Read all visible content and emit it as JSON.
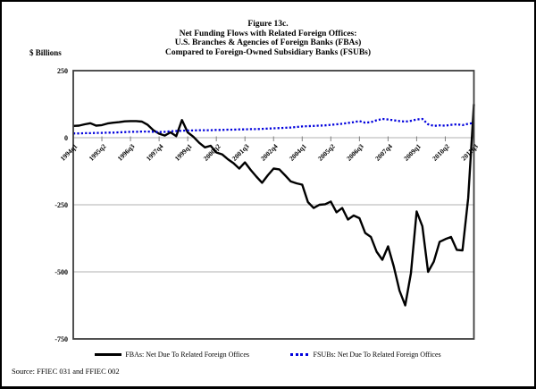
{
  "figure": {
    "title_lines": [
      "Figure 13c.",
      "Net Funding Flows with Related Foreign Offices:",
      "U.S. Branches & Agencies of Foreign Banks (FBAs)",
      "Compared to Foreign-Owned Subsidiary Banks (FSUBs)"
    ],
    "y_axis_label": "$ Billions",
    "source": "Source: FFIEC 031 and FFIEC 002"
  },
  "chart_data": {
    "type": "line",
    "title": "Net Funding Flows with Related Foreign Offices",
    "ylabel": "$ Billions",
    "xlabel": "",
    "ylim": [
      -750,
      250
    ],
    "y_ticks": [
      250,
      0,
      -250,
      -500,
      -750
    ],
    "grid": true,
    "legend_position": "bottom",
    "x": [
      "1994q1",
      "1994q2",
      "1994q3",
      "1994q4",
      "1995q1",
      "1995q2",
      "1995q3",
      "1995q4",
      "1996q1",
      "1996q2",
      "1996q3",
      "1996q4",
      "1997q1",
      "1997q2",
      "1997q3",
      "1997q4",
      "1998q1",
      "1998q2",
      "1998q3",
      "1998q4",
      "1999q1",
      "1999q2",
      "1999q3",
      "1999q4",
      "2000q1",
      "2000q2",
      "2000q3",
      "2000q4",
      "2001q1",
      "2001q2",
      "2001q3",
      "2001q4",
      "2002q1",
      "2002q2",
      "2002q3",
      "2002q4",
      "2003q1",
      "2003q2",
      "2003q3",
      "2003q4",
      "2004q1",
      "2004q2",
      "2004q3",
      "2004q4",
      "2005q1",
      "2005q2",
      "2005q3",
      "2005q4",
      "2006q1",
      "2006q2",
      "2006q3",
      "2006q4",
      "2007q1",
      "2007q2",
      "2007q3",
      "2007q4",
      "2008q1",
      "2008q2",
      "2008q3",
      "2008q4",
      "2009q1",
      "2009q2",
      "2009q3",
      "2009q4",
      "2010q1",
      "2010q2",
      "2010q3",
      "2010q4",
      "2011q1",
      "2011q2",
      "2011q3"
    ],
    "x_tick_labels": [
      "1994q1",
      "1995q2",
      "1996q3",
      "1997q4",
      "1999q1",
      "2000q2",
      "2001q3",
      "2002q4",
      "2004q1",
      "2005q2",
      "2006q3",
      "2007q4",
      "2009q1",
      "2010q2",
      "2011q3"
    ],
    "series": [
      {
        "name": "FBAs: Net Due To Related Foreign Offices",
        "style": "solid",
        "color": "#000000",
        "values": [
          44,
          45,
          50,
          54,
          45,
          47,
          53,
          56,
          58,
          61,
          62,
          62,
          60,
          48,
          28,
          15,
          8,
          20,
          6,
          66,
          20,
          3,
          -19,
          -36,
          -30,
          -55,
          -62,
          -80,
          -95,
          -115,
          -92,
          -120,
          -145,
          -168,
          -140,
          -115,
          -118,
          -140,
          -163,
          -170,
          -175,
          -240,
          -262,
          -250,
          -248,
          -238,
          -278,
          -262,
          -305,
          -290,
          -300,
          -355,
          -370,
          -425,
          -455,
          -405,
          -480,
          -570,
          -625,
          -505,
          -275,
          -330,
          -500,
          -462,
          -388,
          -378,
          -370,
          -418,
          -420,
          -225,
          125
        ]
      },
      {
        "name": "FSUBs: Net Due To Related Foreign Offices",
        "style": "dotted",
        "color": "#0000dd",
        "values": [
          16,
          16,
          17,
          17,
          18,
          18,
          19,
          19,
          20,
          21,
          22,
          22,
          23,
          23,
          22,
          21,
          22,
          24,
          25,
          26,
          27,
          27,
          28,
          28,
          28,
          29,
          29,
          30,
          30,
          31,
          31,
          32,
          32,
          33,
          34,
          35,
          36,
          37,
          38,
          40,
          42,
          43,
          44,
          45,
          46,
          48,
          50,
          52,
          55,
          58,
          62,
          56,
          58,
          65,
          70,
          68,
          65,
          62,
          60,
          63,
          68,
          70,
          50,
          44,
          46,
          45,
          48,
          50,
          47,
          52,
          55
        ]
      }
    ]
  }
}
